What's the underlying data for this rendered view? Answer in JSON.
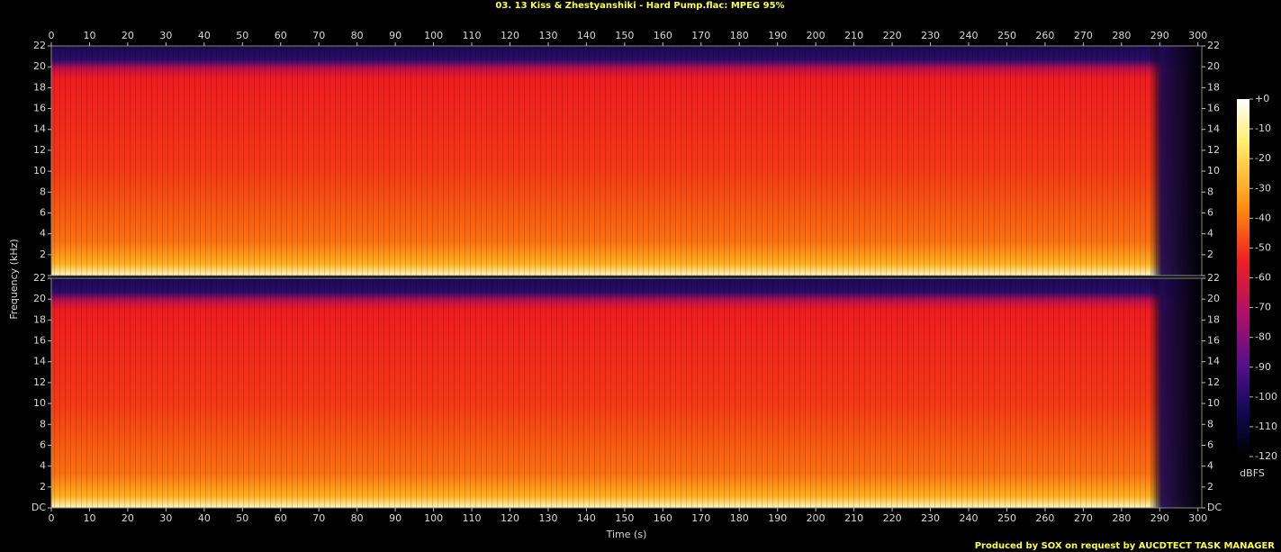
{
  "chart_data": {
    "type": "spectrogram",
    "title": "03. 13 Kiss & Zhestyanshiki - Hard Pump.flac: MPEG 95%",
    "xlabel": "Time (s)",
    "ylabel": "Frequency (kHz)",
    "xlim": [
      0,
      301
    ],
    "xticks": [
      0,
      10,
      20,
      30,
      40,
      50,
      60,
      70,
      80,
      90,
      100,
      110,
      120,
      130,
      140,
      150,
      160,
      170,
      180,
      190,
      200,
      210,
      220,
      230,
      240,
      250,
      260,
      270,
      280,
      290,
      300
    ],
    "ylim": [
      0,
      22
    ],
    "yticks": [
      {
        "value": 0,
        "label": "DC"
      },
      2,
      4,
      6,
      8,
      10,
      12,
      14,
      16,
      18,
      20,
      22
    ],
    "colorbar": {
      "label": "dBFS",
      "lim": [
        -120,
        0
      ],
      "ticks": [
        {
          "value": 0,
          "label": "+0"
        },
        -10,
        -20,
        -30,
        -40,
        -50,
        -60,
        -70,
        -80,
        -90,
        -100,
        -110,
        -120
      ]
    },
    "footer": "Produced by SOX on request by AUCDTECT TASK MANAGER"
  }
}
